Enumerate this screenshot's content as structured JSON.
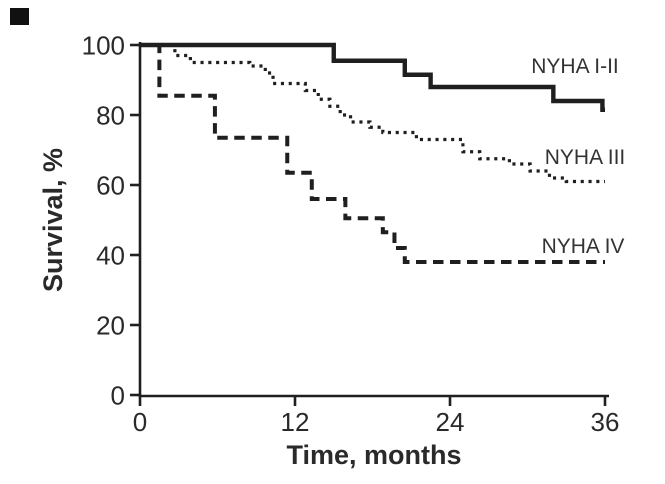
{
  "figure": {
    "background_color": "#ffffff",
    "ink_color": "#1f1f1f",
    "artifact": {
      "present": true,
      "color": "#111111"
    }
  },
  "chart_data": {
    "type": "line",
    "subtype": "kaplan-meier-step-survival",
    "title": "",
    "xlabel": "Time, months",
    "ylabel": "Survival, %",
    "xlim": [
      0,
      36
    ],
    "ylim": [
      0,
      100
    ],
    "x_ticks": [
      0,
      12,
      24,
      36
    ],
    "y_ticks": [
      0,
      20,
      40,
      60,
      80,
      100
    ],
    "grid": false,
    "legend_position": "inline-right-of-curves",
    "series": [
      {
        "name": "NYHA I-II",
        "line_style": "solid",
        "start_value": 100,
        "steps": [
          [
            15,
            95.5
          ],
          [
            20.5,
            91.5
          ],
          [
            22.5,
            88
          ],
          [
            32,
            84
          ],
          [
            35.8,
            81.5
          ]
        ],
        "end_time": 36,
        "end_value": 81.5
      },
      {
        "name": "NYHA III",
        "line_style": "dotted",
        "start_value": 100,
        "steps": [
          [
            2.7,
            97
          ],
          [
            3.9,
            95
          ],
          [
            8.5,
            94
          ],
          [
            9.7,
            92
          ],
          [
            10.3,
            89
          ],
          [
            12.8,
            87
          ],
          [
            13.8,
            84.5
          ],
          [
            14.7,
            82.5
          ],
          [
            15.5,
            80
          ],
          [
            16.3,
            78
          ],
          [
            17.8,
            76.5
          ],
          [
            18.8,
            75
          ],
          [
            21.4,
            73
          ],
          [
            25,
            69.5
          ],
          [
            26.3,
            67.5
          ],
          [
            28.6,
            66
          ],
          [
            30.2,
            64
          ],
          [
            31.7,
            62
          ],
          [
            33,
            61
          ]
        ],
        "end_time": 36,
        "end_value": 61
      },
      {
        "name": "NYHA IV",
        "line_style": "dashed",
        "start_value": 100,
        "steps": [
          [
            1.5,
            85.5
          ],
          [
            5.8,
            73.5
          ],
          [
            11.4,
            63.5
          ],
          [
            13.3,
            56
          ],
          [
            15.9,
            50.5
          ],
          [
            18.8,
            46.5
          ],
          [
            19.7,
            42
          ],
          [
            20.5,
            38
          ]
        ],
        "end_time": 36,
        "end_value": 38
      }
    ]
  }
}
